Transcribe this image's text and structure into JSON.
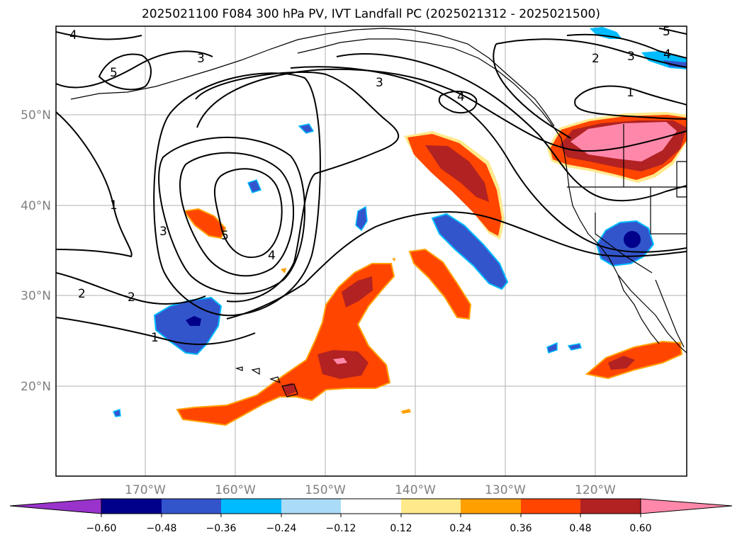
{
  "title": "2025021100 F084 300 hPa PV, IVT Landfall PC (2025021312 - 2025021500)",
  "map": {
    "lat_labels": [
      "50°N",
      "40°N",
      "30°N",
      "20°N"
    ],
    "lon_labels": [
      "170°W",
      "160°W",
      "150°W",
      "140°W",
      "130°W",
      "120°W"
    ],
    "contour_labels": [
      "4",
      "5",
      "3",
      "1",
      "3",
      "2",
      "2",
      "1",
      "5",
      "4",
      "3",
      "4",
      "2",
      "3",
      "4",
      "5",
      "1"
    ]
  },
  "colorbar": {
    "tick_labels": [
      "−0.60",
      "−0.48",
      "−0.36",
      "−0.24",
      "−0.12",
      "0.12",
      "0.24",
      "0.36",
      "0.48",
      "0.60"
    ],
    "colors": [
      "#9933cc",
      "#00008b",
      "#3355cc",
      "#00bbff",
      "#aadcf8",
      "#ffffff",
      "#ffe98a",
      "#ffa000",
      "#ff4500",
      "#b22222",
      "#ff88aa"
    ]
  },
  "fill_colors": {
    "neg_light": "#aadcf8",
    "neg_cyan": "#00bbff",
    "neg_blue": "#3355cc",
    "neg_dark": "#00008b",
    "pos_yellow": "#ffe98a",
    "pos_orange": "#ffa000",
    "pos_red": "#ff4500",
    "pos_darkred": "#b22222",
    "pos_pink": "#ff88aa"
  }
}
